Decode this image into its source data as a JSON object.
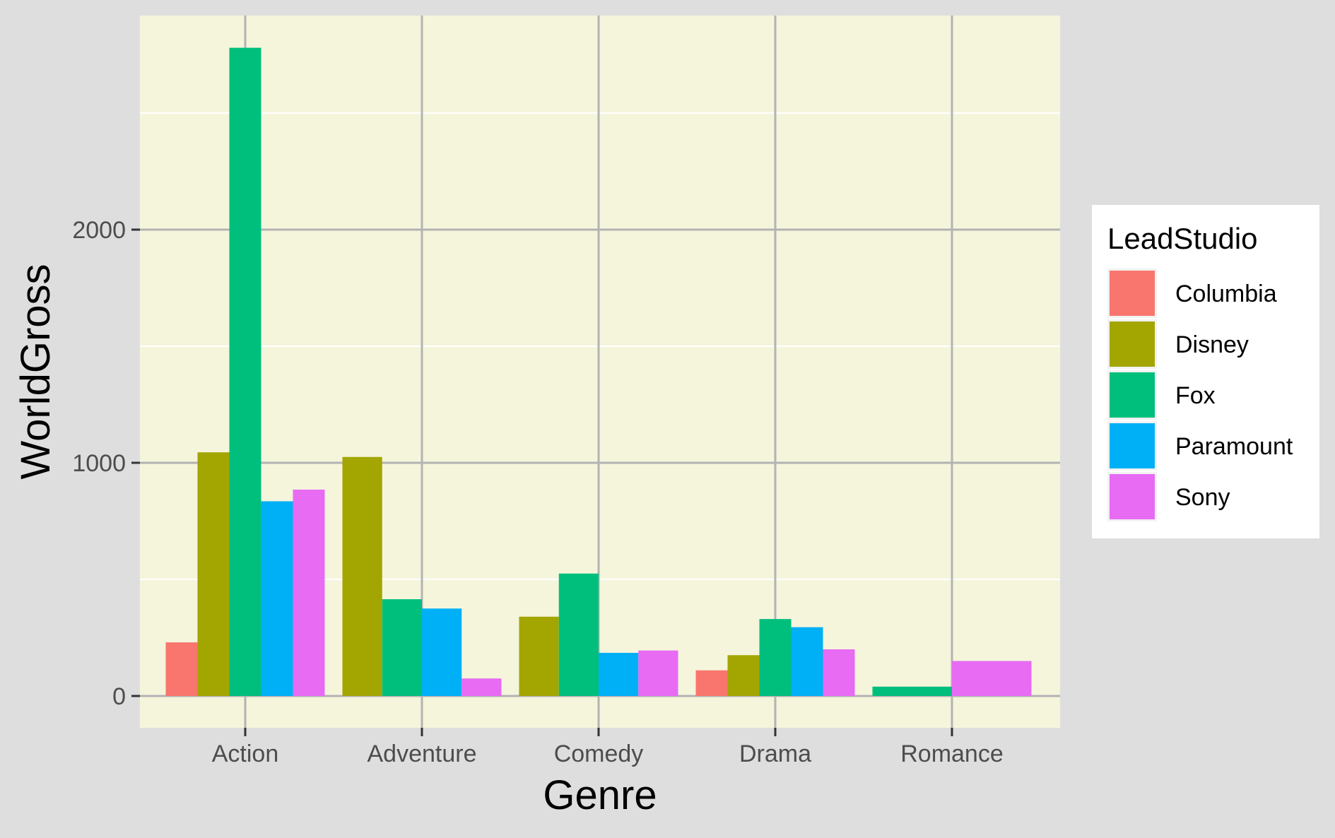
{
  "chart_data": {
    "type": "bar",
    "title": "",
    "xlabel": "Genre",
    "ylabel": "WorldGross",
    "categories": [
      "Action",
      "Adventure",
      "Comedy",
      "Drama",
      "Romance"
    ],
    "ylim": [
      -135,
      2910
    ],
    "yticks": [
      0,
      1000,
      2000
    ],
    "grid": true,
    "legend": {
      "title": "LeadStudio",
      "position": "right"
    },
    "series": [
      {
        "name": "Columbia",
        "color": "#F8766D",
        "values": [
          230,
          null,
          null,
          110,
          null
        ]
      },
      {
        "name": "Disney",
        "color": "#A3A500",
        "values": [
          1045,
          1025,
          340,
          175,
          null
        ]
      },
      {
        "name": "Fox",
        "color": "#00BF7D",
        "values": [
          2780,
          415,
          525,
          330,
          40
        ]
      },
      {
        "name": "Paramount",
        "color": "#00B0F6",
        "values": [
          835,
          375,
          185,
          295,
          null
        ]
      },
      {
        "name": "Sony",
        "color": "#E76BF3",
        "values": [
          885,
          75,
          195,
          200,
          150
        ]
      }
    ]
  }
}
